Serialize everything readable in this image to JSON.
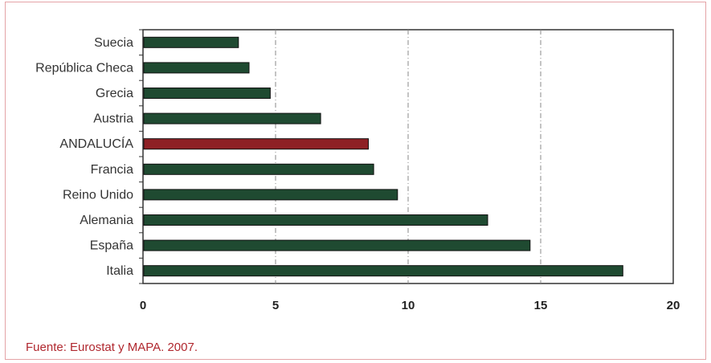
{
  "chart_data": {
    "type": "bar",
    "orientation": "horizontal",
    "categories": [
      "Suecia",
      "República Checa",
      "Grecia",
      "Austria",
      "ANDALUCÍA",
      "Francia",
      "Reino Unido",
      "Alemania",
      "España",
      "Italia"
    ],
    "values": [
      3.6,
      4.0,
      4.8,
      6.7,
      8.5,
      8.7,
      9.6,
      13.0,
      14.6,
      18.1
    ],
    "highlight": "ANDALUCÍA",
    "xlim": [
      0,
      20
    ],
    "xticks": [
      0,
      5,
      10,
      15,
      20
    ],
    "grid": "vertical dash-dot",
    "colors": {
      "bar": "#1f4a31",
      "highlight": "#8e2025",
      "grid": "#888888",
      "frame": "#e4a3a6",
      "source_text": "#b0272e"
    }
  },
  "source": "Fuente: Eurostat y MAPA. 2007."
}
